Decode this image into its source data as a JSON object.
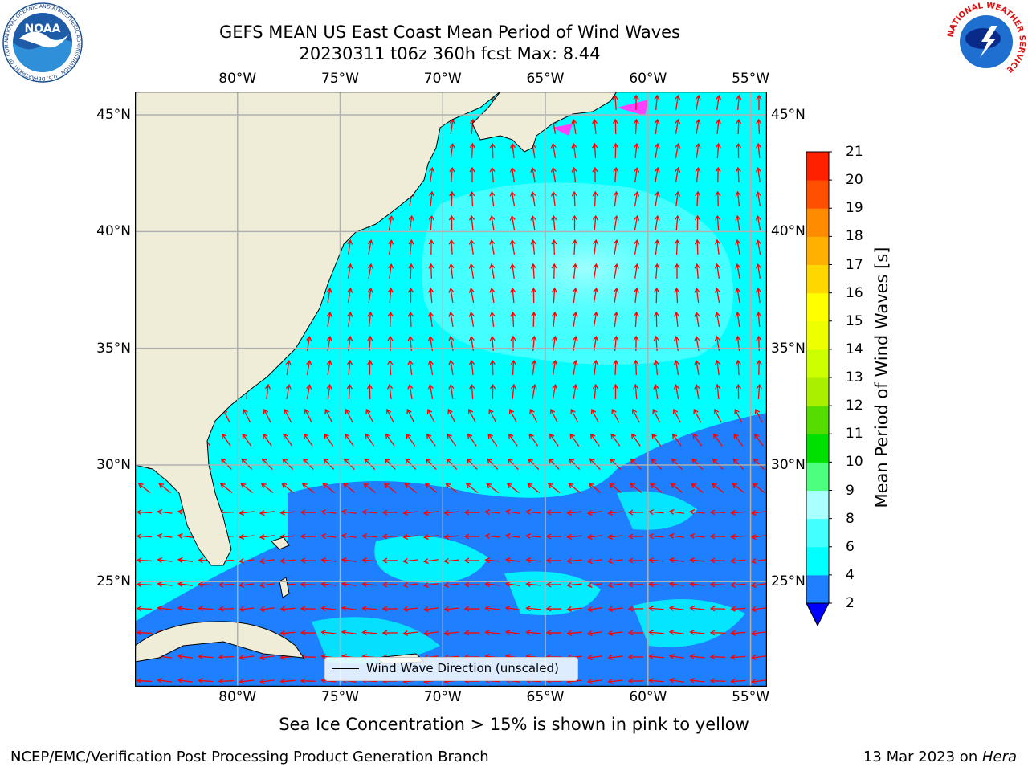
{
  "title": {
    "line1": "GEFS MEAN US East Coast Mean Period of Wind Waves",
    "line2": "20230311 t06z 360h fcst   Max: 8.44"
  },
  "logos": {
    "noaa_text": "NOAA",
    "noaa_ring": "NATIONAL OCEANIC AND ATMOSPHERIC ADMINISTRATION · U.S. DEPARTMENT OF COMMERCE",
    "nws_ring": "NATIONAL WEATHER SERVICE"
  },
  "map": {
    "lon_range": [
      -85,
      -54.2
    ],
    "lat_range": [
      20.5,
      46
    ],
    "lon_ticks": [
      "80°W",
      "75°W",
      "70°W",
      "65°W",
      "60°W",
      "55°W"
    ],
    "lon_values": [
      -80,
      -75,
      -70,
      -65,
      -60,
      -55
    ],
    "lat_ticks": [
      "45°N",
      "40°N",
      "35°N",
      "30°N",
      "25°N"
    ],
    "lat_values": [
      45,
      40,
      35,
      30,
      25
    ],
    "grid": true,
    "vector_color": "#ff0000",
    "land_color": "#efedd8",
    "legend_label": "Wind Wave Direction (unscaled)"
  },
  "colorbar": {
    "label": "Mean Period of Wind Waves [s]",
    "levels": [
      2,
      4,
      6,
      8,
      9,
      10,
      11,
      12,
      13,
      14,
      15,
      16,
      17,
      18,
      19,
      20,
      21
    ],
    "colors": [
      "#1e7fff",
      "#00ffff",
      "#44ffff",
      "#aaffff",
      "#4cff7f",
      "#00e000",
      "#55dd00",
      "#aaee00",
      "#ccff00",
      "#eeff00",
      "#ffff00",
      "#ffd700",
      "#ffb000",
      "#ff8c00",
      "#ff5000",
      "#ff2000"
    ],
    "under_color": "#0000ff"
  },
  "subtitle": "Sea Ice Concentration > 15% is shown in pink to yellow",
  "footer": {
    "left": "NCEP/EMC/Verification Post Processing Product Generation Branch",
    "date": "13 Mar 2023 on ",
    "host": "Hera"
  }
}
